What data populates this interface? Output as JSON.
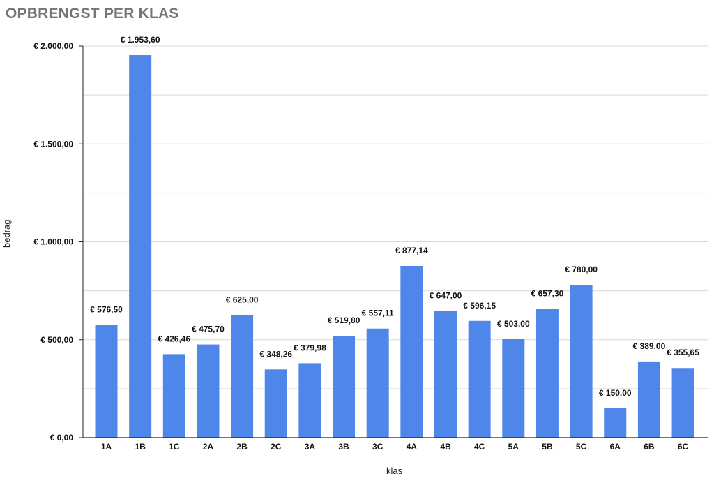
{
  "colors": {
    "bar": "#4f86ea",
    "grid": "#d9d9d9",
    "axis": "#222222",
    "title": "#757575"
  },
  "chart_data": {
    "type": "bar",
    "title": "OPBRENGST PER KLAS",
    "xlabel": "klas",
    "ylabel": "bedrag",
    "ylim": [
      0,
      2000
    ],
    "grid": true,
    "yticks": [
      0,
      500,
      1000,
      1500,
      2000
    ],
    "ytick_labels": [
      "€ 0,00",
      "€ 500,00",
      "€ 1.000,00",
      "€ 1.500,00",
      "€ 2.000,00"
    ],
    "categories": [
      "1A",
      "1B",
      "1C",
      "2A",
      "2B",
      "2C",
      "3A",
      "3B",
      "3C",
      "4A",
      "4B",
      "4C",
      "5A",
      "5B",
      "5C",
      "6A",
      "6B",
      "6C"
    ],
    "values": [
      576.5,
      1953.6,
      426.46,
      475.7,
      625.0,
      348.26,
      379.98,
      519.8,
      557.11,
      877.14,
      647.0,
      596.15,
      503.0,
      657.3,
      780.0,
      150.0,
      389.0,
      355.65
    ],
    "data_labels": [
      "€ 576,50",
      "€ 1.953,60",
      "€ 426,46",
      "€ 475,70",
      "€ 625,00",
      "€ 348,26",
      "€ 379,98",
      "€ 519,80",
      "€ 557,11",
      "€ 877,14",
      "€ 647,00",
      "€ 596,15",
      "€ 503,00",
      "€ 657,30",
      "€ 780,00",
      "€ 150,00",
      "€ 389,00",
      "€ 355,65"
    ]
  }
}
